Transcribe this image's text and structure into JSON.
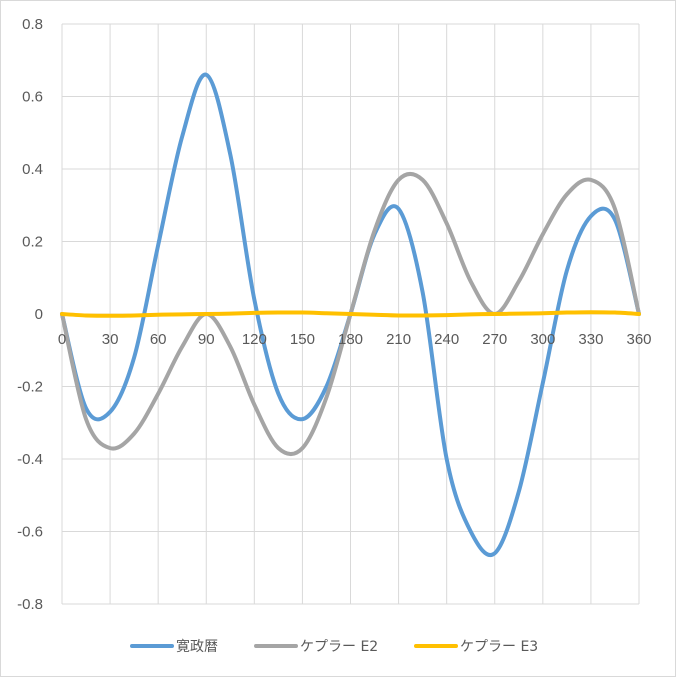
{
  "chart_data": {
    "type": "line",
    "title": "",
    "xlabel": "",
    "ylabel": "",
    "xlim": [
      0,
      360
    ],
    "ylim": [
      -0.8,
      0.8
    ],
    "x_ticks": [
      0,
      30,
      60,
      90,
      120,
      150,
      180,
      210,
      240,
      270,
      300,
      330,
      360
    ],
    "x_tick_labels": [
      "0",
      "30",
      "60",
      "90",
      "120",
      "150",
      "180",
      "210",
      "240",
      "270",
      "300",
      "330",
      "360"
    ],
    "y_ticks": [
      0.8,
      0.6,
      0.4,
      0.2,
      0,
      -0.2,
      -0.4,
      -0.6,
      -0.8
    ],
    "y_tick_labels": [
      "0.8",
      "0.6",
      "0.4",
      "0.2",
      "0",
      "-0.2",
      "-0.4",
      "-0.6",
      "-0.8"
    ],
    "grid": "vertical-and-horizontal",
    "legend_position": "bottom",
    "x": [
      0,
      15,
      30,
      45,
      60,
      75,
      90,
      105,
      120,
      135,
      150,
      165,
      180,
      195,
      210,
      225,
      240,
      255,
      270,
      285,
      300,
      315,
      330,
      345,
      360
    ],
    "series": [
      {
        "name": "寛政暦",
        "color": "#5b9bd5",
        "values": [
          0,
          -0.26,
          -0.27,
          -0.12,
          0.19,
          0.49,
          0.66,
          0.44,
          0.04,
          -0.22,
          -0.29,
          -0.2,
          0,
          0.22,
          0.29,
          0.06,
          -0.4,
          -0.6,
          -0.66,
          -0.49,
          -0.19,
          0.12,
          0.27,
          0.26,
          0
        ]
      },
      {
        "name": "ケプラー E2",
        "color": "#a5a5a5",
        "values": [
          0,
          -0.29,
          -0.37,
          -0.33,
          -0.22,
          -0.09,
          0,
          -0.09,
          -0.25,
          -0.37,
          -0.37,
          -0.23,
          0,
          0.23,
          0.37,
          0.37,
          0.25,
          0.09,
          0,
          0.09,
          0.22,
          0.33,
          0.37,
          0.29,
          0
        ]
      },
      {
        "name": "ケプラー E3",
        "color": "#ffc000",
        "values": [
          0,
          -0.004,
          -0.005,
          -0.004,
          -0.002,
          -0.001,
          0,
          0.001,
          0.003,
          0.004,
          0.004,
          0.002,
          0,
          -0.002,
          -0.004,
          -0.004,
          -0.003,
          -0.001,
          0,
          0.001,
          0.002,
          0.004,
          0.005,
          0.004,
          0
        ]
      }
    ]
  }
}
